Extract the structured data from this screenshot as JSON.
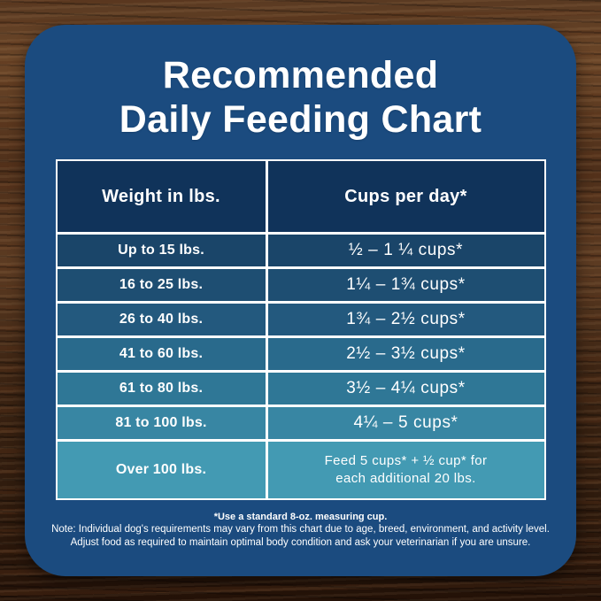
{
  "palette": {
    "card_bg": "#1b4b7f",
    "table_gridline": "#ffffff",
    "header_row_bg": "#10335a",
    "row_colors": [
      "#1a4569",
      "#1e4e72",
      "#23597e",
      "#296a8c",
      "#2f7796",
      "#3886a3",
      "#439ab3"
    ],
    "text_color": "#ffffff",
    "wood_dark": "#241208",
    "wood_light": "#6b4628"
  },
  "title": {
    "line1": "Recommended",
    "line2": "Daily Feeding Chart"
  },
  "table": {
    "headers": {
      "weight": "Weight in lbs.",
      "cups": "Cups per day*"
    },
    "rows": [
      {
        "weight": "Up to 15 lbs.",
        "cups": "½ – 1 ¼ cups*"
      },
      {
        "weight": "16 to 25 lbs.",
        "cups": "1¼ – 1¾  cups*"
      },
      {
        "weight": "26 to 40 lbs.",
        "cups": "1¾ – 2½ cups*"
      },
      {
        "weight": "41 to 60 lbs.",
        "cups": "2½ – 3½ cups*"
      },
      {
        "weight": "61 to 80 lbs.",
        "cups": "3½ – 4¼ cups*"
      },
      {
        "weight": "81 to 100 lbs.",
        "cups": "4¼ – 5 cups*"
      },
      {
        "weight": "Over 100 lbs.",
        "cups_line1": "Feed 5 cups*  + ½ cup* for",
        "cups_line2": "each  additional 20 lbs."
      }
    ]
  },
  "footnotes": {
    "measuring_cup": "*Use a standard 8-oz. measuring cup.",
    "note_line1": "Note: Individual dog's requirements may vary from this chart due to age, breed, environment, and activity level.",
    "note_line2": "Adjust food as required to maintain optimal body condition and ask your veterinarian if you are unsure."
  },
  "chart_data": {
    "type": "table",
    "title": "Recommended Daily Feeding Chart",
    "columns": [
      "Weight in lbs.",
      "Cups per day*"
    ],
    "rows": [
      [
        "Up to 15 lbs.",
        "½ – 1 ¼ cups*"
      ],
      [
        "16 to 25 lbs.",
        "1¼ – 1¾ cups*"
      ],
      [
        "26 to 40 lbs.",
        "1¾ – 2½ cups*"
      ],
      [
        "41 to 60 lbs.",
        "2½ – 3½ cups*"
      ],
      [
        "61 to 80 lbs.",
        "3½ – 4¼ cups*"
      ],
      [
        "81 to 100 lbs.",
        "4¼ – 5 cups*"
      ],
      [
        "Over 100 lbs.",
        "Feed 5 cups* + ½ cup* for each additional 20 lbs."
      ]
    ],
    "numeric": [
      {
        "weight_lbs_min": 0,
        "weight_lbs_max": 15,
        "cups_min": 0.5,
        "cups_max": 1.25
      },
      {
        "weight_lbs_min": 16,
        "weight_lbs_max": 25,
        "cups_min": 1.25,
        "cups_max": 1.75
      },
      {
        "weight_lbs_min": 26,
        "weight_lbs_max": 40,
        "cups_min": 1.75,
        "cups_max": 2.5
      },
      {
        "weight_lbs_min": 41,
        "weight_lbs_max": 60,
        "cups_min": 2.5,
        "cups_max": 3.5
      },
      {
        "weight_lbs_min": 61,
        "weight_lbs_max": 80,
        "cups_min": 3.5,
        "cups_max": 4.25
      },
      {
        "weight_lbs_min": 81,
        "weight_lbs_max": 100,
        "cups_min": 4.25,
        "cups_max": 5
      },
      {
        "weight_lbs_min": 100,
        "weight_lbs_max": null,
        "rule": "5 cups plus 0.5 cup per each additional 20 lbs"
      }
    ],
    "footnote": "*Use a standard 8-oz. measuring cup."
  }
}
